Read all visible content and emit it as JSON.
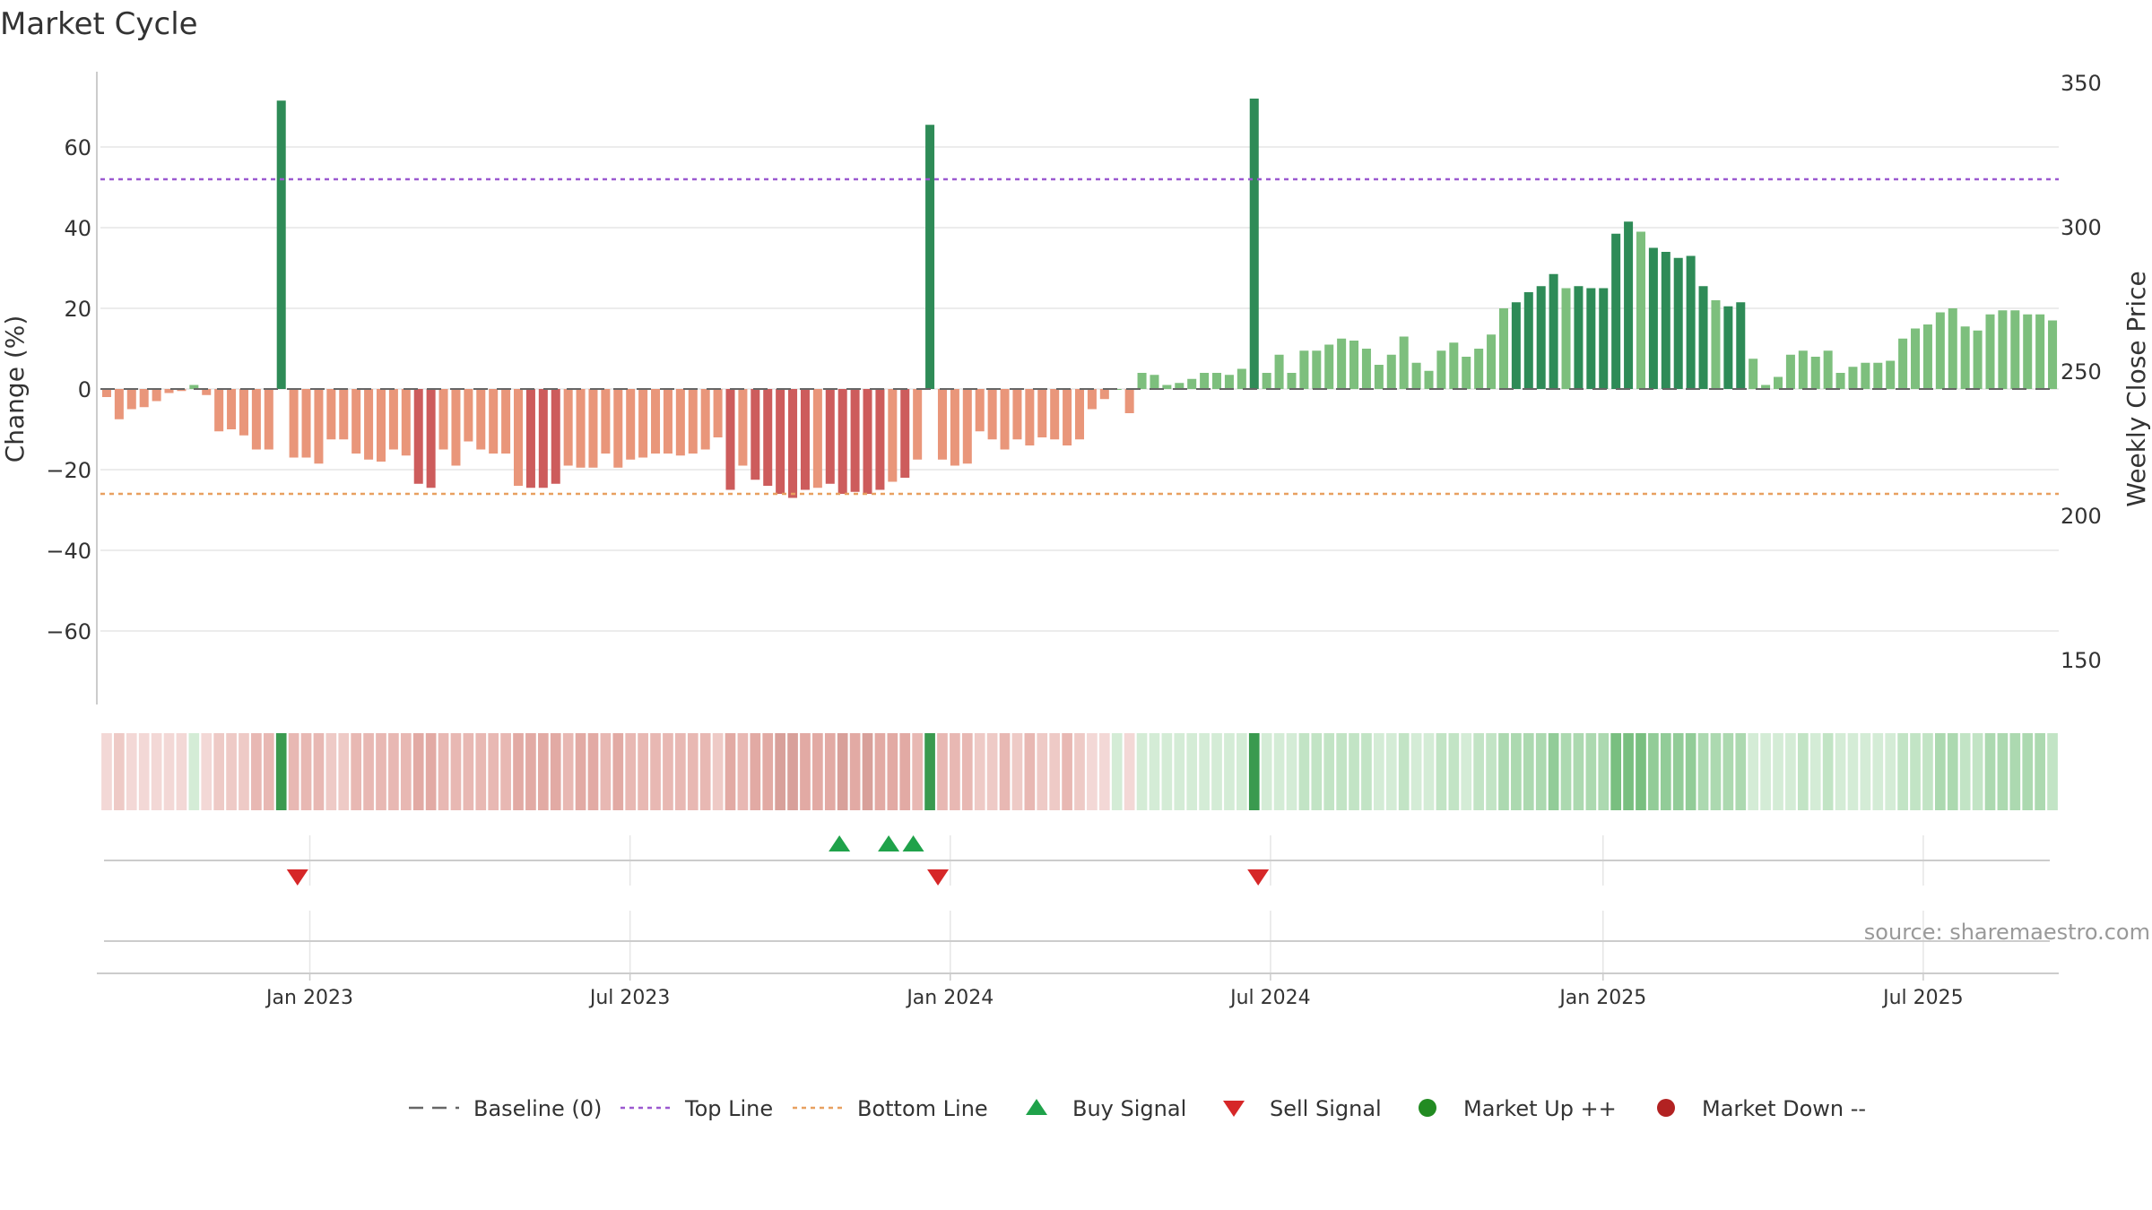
{
  "title": "Market Cycle",
  "source": "source: sharemaestro.com",
  "colors": {
    "green_dark": "#2e8b57",
    "green_light": "#7dbf7d",
    "red_dark": "#cd5c5c",
    "red_light": "#e9967a",
    "top_line": "#9b59d0",
    "bottom_line": "#e8a060",
    "baseline": "#666666",
    "buy": "#1fa24a",
    "sell": "#d62728",
    "market_up": "#228b22",
    "market_down": "#b22222",
    "grid": "#e6e6e6"
  },
  "legend": [
    {
      "label": "Baseline (0)",
      "icon": "dash-line-icon"
    },
    {
      "label": "Top Line",
      "icon": "dotted-purple-line-icon"
    },
    {
      "label": "Bottom Line",
      "icon": "dotted-orange-line-icon"
    },
    {
      "label": "Buy Signal",
      "icon": "triangle-up-icon"
    },
    {
      "label": "Sell Signal",
      "icon": "triangle-down-icon"
    },
    {
      "label": "Market Up ++",
      "icon": "green-circle-icon"
    },
    {
      "label": "Market Down --",
      "icon": "red-circle-icon"
    }
  ],
  "chart_data": {
    "type": "bar",
    "x_axis": {
      "start": "2022-09-05",
      "end": "2025-09-22",
      "ticks": [
        {
          "label": "Jan 2023",
          "date": "2023-01-02"
        },
        {
          "label": "Jul 2023",
          "date": "2023-07-03"
        },
        {
          "label": "Jan 2024",
          "date": "2024-01-01"
        },
        {
          "label": "Jul 2024",
          "date": "2024-07-01"
        },
        {
          "label": "Jan 2025",
          "date": "2025-01-06"
        },
        {
          "label": "Jul 2025",
          "date": "2025-07-07"
        }
      ]
    },
    "y_left": {
      "label": "Change (%)",
      "range": [
        -78,
        78
      ],
      "ticks": [
        -60,
        -40,
        -20,
        0,
        20,
        40,
        60
      ]
    },
    "y_right": {
      "label": "Weekly Close Price",
      "range": [
        140,
        350
      ],
      "ticks": [
        150,
        200,
        250,
        300,
        350
      ]
    },
    "top_line": 52,
    "bottom_line": -26,
    "baseline": 0,
    "grid": true,
    "legend_position": "bottom",
    "series": [
      {
        "name": "Change (%)",
        "values": [
          -2,
          -7.5,
          -5,
          -4.5,
          -3,
          -1,
          -0.5,
          1,
          -1.5,
          -10.5,
          -10,
          -11.5,
          -15,
          -15,
          71.5,
          -17,
          -17,
          -18.5,
          -12.5,
          -12.5,
          -16,
          -17.5,
          -18,
          -15,
          -16.5,
          -23.5,
          -24.5,
          -15,
          -19,
          -13,
          -15,
          -16,
          -16,
          -24,
          -24.5,
          -24.5,
          -23.5,
          -19,
          -19.5,
          -19.5,
          -16,
          -19.5,
          -17.5,
          -17,
          -16,
          -16,
          -16.5,
          -16,
          -15,
          -12,
          -25,
          -19,
          -22.5,
          -24,
          -26,
          -27,
          -25,
          -24.5,
          -23.5,
          -26,
          -25.5,
          -26,
          -25,
          -23,
          -22,
          -17.5,
          65.5,
          -17.5,
          -19,
          -18.5,
          -10.5,
          -12.5,
          -15,
          -12.5,
          -14,
          -12,
          -12.5,
          -14,
          -12.5,
          -5,
          -2.5,
          0,
          -6,
          4,
          3.5,
          1,
          1.5,
          2.5,
          4,
          4,
          3.5,
          5,
          72,
          4,
          8.5,
          4,
          9.5,
          9.5,
          11,
          12.5,
          12,
          10,
          6,
          8.5,
          13,
          6.5,
          4.5,
          9.5,
          11.5,
          8,
          10,
          13.5,
          20,
          21.5,
          24,
          25.5,
          28.5,
          25,
          25.5,
          25,
          25,
          38.5,
          41.5,
          39,
          35,
          34,
          32.5,
          33,
          25.5,
          22,
          20.5,
          21.5,
          7.5,
          1,
          3,
          8.5,
          9.5,
          8,
          9.5,
          4,
          5.5,
          6.5,
          6.5,
          7,
          12.5,
          15,
          16,
          19,
          20,
          15.5,
          14.5,
          18.5,
          19.5,
          19.5,
          18.5,
          18.5,
          17
        ]
      },
      {
        "name": "Weekly Close Price",
        "values": []
      }
    ],
    "heat_strip": {
      "type": "heatmap",
      "based_on": "Change (%)"
    },
    "buy_signals": [
      "2023-10-30",
      "2023-11-27",
      "2023-12-11"
    ],
    "sell_signals": [
      "2022-12-26",
      "2023-12-25",
      "2024-06-24"
    ],
    "market_up": [],
    "market_down": []
  }
}
